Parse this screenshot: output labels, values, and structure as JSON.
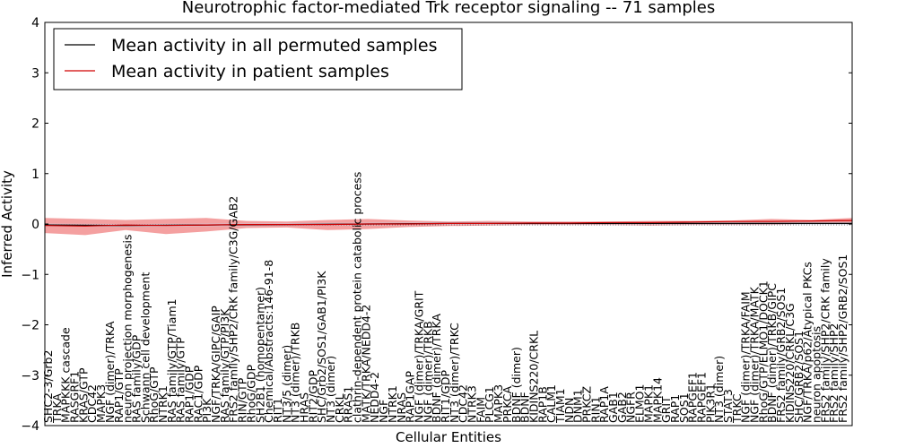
{
  "chart_data": {
    "type": "line",
    "title": "Neurotrophic factor-mediated Trk receptor signaling -- 71 samples",
    "xlabel": "Cellular Entities",
    "ylabel": "Inferred Activity",
    "ylim": [
      -4,
      4
    ],
    "yticks": [
      -4,
      -3,
      -2,
      -1,
      0,
      1,
      2,
      3,
      4
    ],
    "ytick_labels": [
      "−4",
      "−3",
      "−2",
      "−1",
      "0",
      "1",
      "2",
      "3",
      "4"
    ],
    "grid": false,
    "legend_position": "top-left",
    "colors": {
      "permuted": "#000000",
      "patient": "#d00000",
      "patient_band": "#f08080",
      "permuted_band": "#c8c8dc"
    },
    "categories": [
      "SHC2-3/Grb2",
      "TRKA",
      "MAPKKK cascade",
      "RASGRF1",
      "KRAS/GTP",
      "CDC42",
      "MAPK3",
      "NGF (dimer)/TRKA",
      "RAP1/GTP",
      "neuron projection morphogenesis",
      "RAS family/GDP",
      "Schwann cell development",
      "RhoG/GTP",
      "NTRK1",
      "RAS family/GTP/Tiam1",
      "RAS family/GTP",
      "RAP1/GDP",
      "RAC1/GDP",
      "PI3K",
      "NGF/TRKA/GIPC/GAIP",
      "RAS family/GTP/PI3K",
      "FRS2 family/SHP2/CRK family/C3G/GAB2",
      "RIN/GTP",
      "RhoG/GDP",
      "SH2B1 (homopentamer)",
      "Chemical/Abstracts:146-91-8",
      "RIT1",
      "NT3/5 (dimer)",
      "NT3 (dimer)/TRKB",
      "HRAS",
      "RIT2/GDP",
      "SHC/Grb2/SOS1/GAB1/PI3K",
      "NT3 (dimer)",
      "CRKL",
      "RRAS1",
      "clathrin-dependent protein catabolic process",
      "MATK/TRKA/NEDD4-2",
      "NEDD4-2",
      "NGF",
      "NTRK1",
      "NRAS",
      "RAP1GAP",
      "NGF (dimer)/TRKA/GRIT",
      "NGF (dimer)/TRKB",
      "BDNF (dimer)/TRKA",
      "RIT1/GDP",
      "NT3 (dimer)/TRKC",
      "CDC42",
      "NTRK3",
      "FAIM",
      "PLCG1",
      "MAPK3",
      "PRKCA",
      "BDNF (dimer)",
      "BDNF",
      "KIDINS220/CRKL",
      "RAP1B",
      "CALM1",
      "TIAM1",
      "NDN",
      "DNM1",
      "PRKCZ",
      "RIN1",
      "RAP1A",
      "GAB1",
      "GAB2",
      "NGFR",
      "ELMO1",
      "MAPK1",
      "MAPK14",
      "GRIT",
      "RAP1",
      "SOS1",
      "RAPGEF1",
      "RAPGEF1",
      "PIK3R1",
      "NT3 (dimer)",
      "STAT3",
      "TRKC",
      "NGF (dimer)/TRKA/FAIM",
      "NGF (dimer)/TRKA/MATK",
      "RhoG/GTP/ELMO1/DOCK1",
      "BDNF (dimer)/TRKB/GIPC",
      "FRS2 family/GRB2/SOS1",
      "KIDINS220/CRKL/C3G",
      "SHC/GRB2/SOS1",
      "NGF/TRKA/p62/Atypical PKCs",
      "neuron apoptosis",
      "FRS2 family/SHP2/CRK family",
      "FRS2 family/SHP2",
      "FRS2 family/SHP2/GRB2/SOS1"
    ],
    "series": [
      {
        "name": "Mean activity in all permuted samples",
        "x": [
          0,
          10,
          20,
          30,
          40,
          50,
          60,
          70,
          80,
          90,
          100
        ],
        "values": [
          -0.02,
          -0.03,
          -0.02,
          -0.01,
          0.0,
          0.01,
          0.01,
          0.01,
          0.01,
          0.01,
          0.01
        ]
      },
      {
        "name": "Mean activity in patient samples",
        "x": [
          0,
          5,
          10,
          15,
          20,
          25,
          30,
          35,
          40,
          45,
          50,
          55,
          60,
          65,
          70,
          75,
          80,
          85,
          90,
          95,
          100
        ],
        "values": [
          -0.03,
          -0.04,
          -0.02,
          -0.03,
          -0.02,
          -0.01,
          -0.01,
          -0.01,
          0.0,
          0.0,
          0.01,
          0.01,
          0.02,
          0.02,
          0.03,
          0.03,
          0.04,
          0.05,
          0.05,
          0.06,
          0.07
        ],
        "band_upper": [
          0.12,
          0.1,
          0.08,
          0.1,
          0.12,
          0.06,
          0.05,
          0.08,
          0.1,
          0.07,
          0.05,
          0.06,
          0.05,
          0.05,
          0.05,
          0.06,
          0.06,
          0.07,
          0.1,
          0.08,
          0.12
        ],
        "band_lower": [
          -0.18,
          -0.22,
          -0.12,
          -0.2,
          -0.15,
          -0.08,
          -0.07,
          -0.12,
          -0.1,
          -0.06,
          -0.04,
          -0.03,
          -0.02,
          -0.02,
          -0.02,
          -0.03,
          -0.02,
          -0.02,
          -0.02,
          0.01,
          0.02
        ]
      }
    ]
  }
}
